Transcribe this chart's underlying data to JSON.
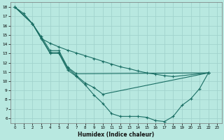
{
  "xlabel": "Humidex (Indice chaleur)",
  "bg_color": "#b8e8e0",
  "line_color": "#1a6e64",
  "grid_color": "#9ecfca",
  "xlim": [
    -0.5,
    23.5
  ],
  "ylim": [
    5.5,
    18.5
  ],
  "xticks": [
    0,
    1,
    2,
    3,
    4,
    5,
    6,
    7,
    8,
    9,
    10,
    11,
    12,
    13,
    14,
    15,
    16,
    17,
    18,
    19,
    20,
    21,
    22,
    23
  ],
  "yticks": [
    6,
    7,
    8,
    9,
    10,
    11,
    12,
    13,
    14,
    15,
    16,
    17,
    18
  ],
  "line1_x": [
    0,
    1,
    2,
    3,
    4,
    5,
    6,
    7,
    8,
    9,
    10,
    11,
    12,
    13,
    14,
    15,
    16,
    17,
    18,
    19,
    20,
    21,
    22
  ],
  "line1_y": [
    18.0,
    17.3,
    16.2,
    14.6,
    13.0,
    13.0,
    11.2,
    10.5,
    9.6,
    8.5,
    7.6,
    6.5,
    6.2,
    6.2,
    6.2,
    6.1,
    5.75,
    5.65,
    6.2,
    7.4,
    8.1,
    9.2,
    10.9
  ],
  "line2_x": [
    0,
    2,
    3,
    4,
    5,
    6,
    7,
    8,
    9,
    10,
    22
  ],
  "line2_y": [
    18.0,
    16.2,
    14.6,
    13.1,
    13.1,
    11.4,
    10.6,
    9.8,
    9.3,
    8.6,
    10.9
  ],
  "line3_x": [
    0,
    2,
    3,
    4,
    5,
    6,
    7,
    22
  ],
  "line3_y": [
    18.0,
    16.2,
    14.8,
    13.3,
    13.3,
    11.5,
    10.8,
    10.9
  ],
  "line4_x": [
    0,
    2,
    3,
    4,
    5,
    6,
    7,
    8,
    9,
    10,
    11,
    12,
    13,
    14,
    15,
    16,
    17,
    18,
    22
  ],
  "line4_y": [
    18.0,
    16.2,
    14.6,
    14.1,
    13.7,
    13.35,
    13.05,
    12.75,
    12.45,
    12.15,
    11.85,
    11.55,
    11.35,
    11.1,
    10.9,
    10.75,
    10.6,
    10.5,
    10.9
  ]
}
